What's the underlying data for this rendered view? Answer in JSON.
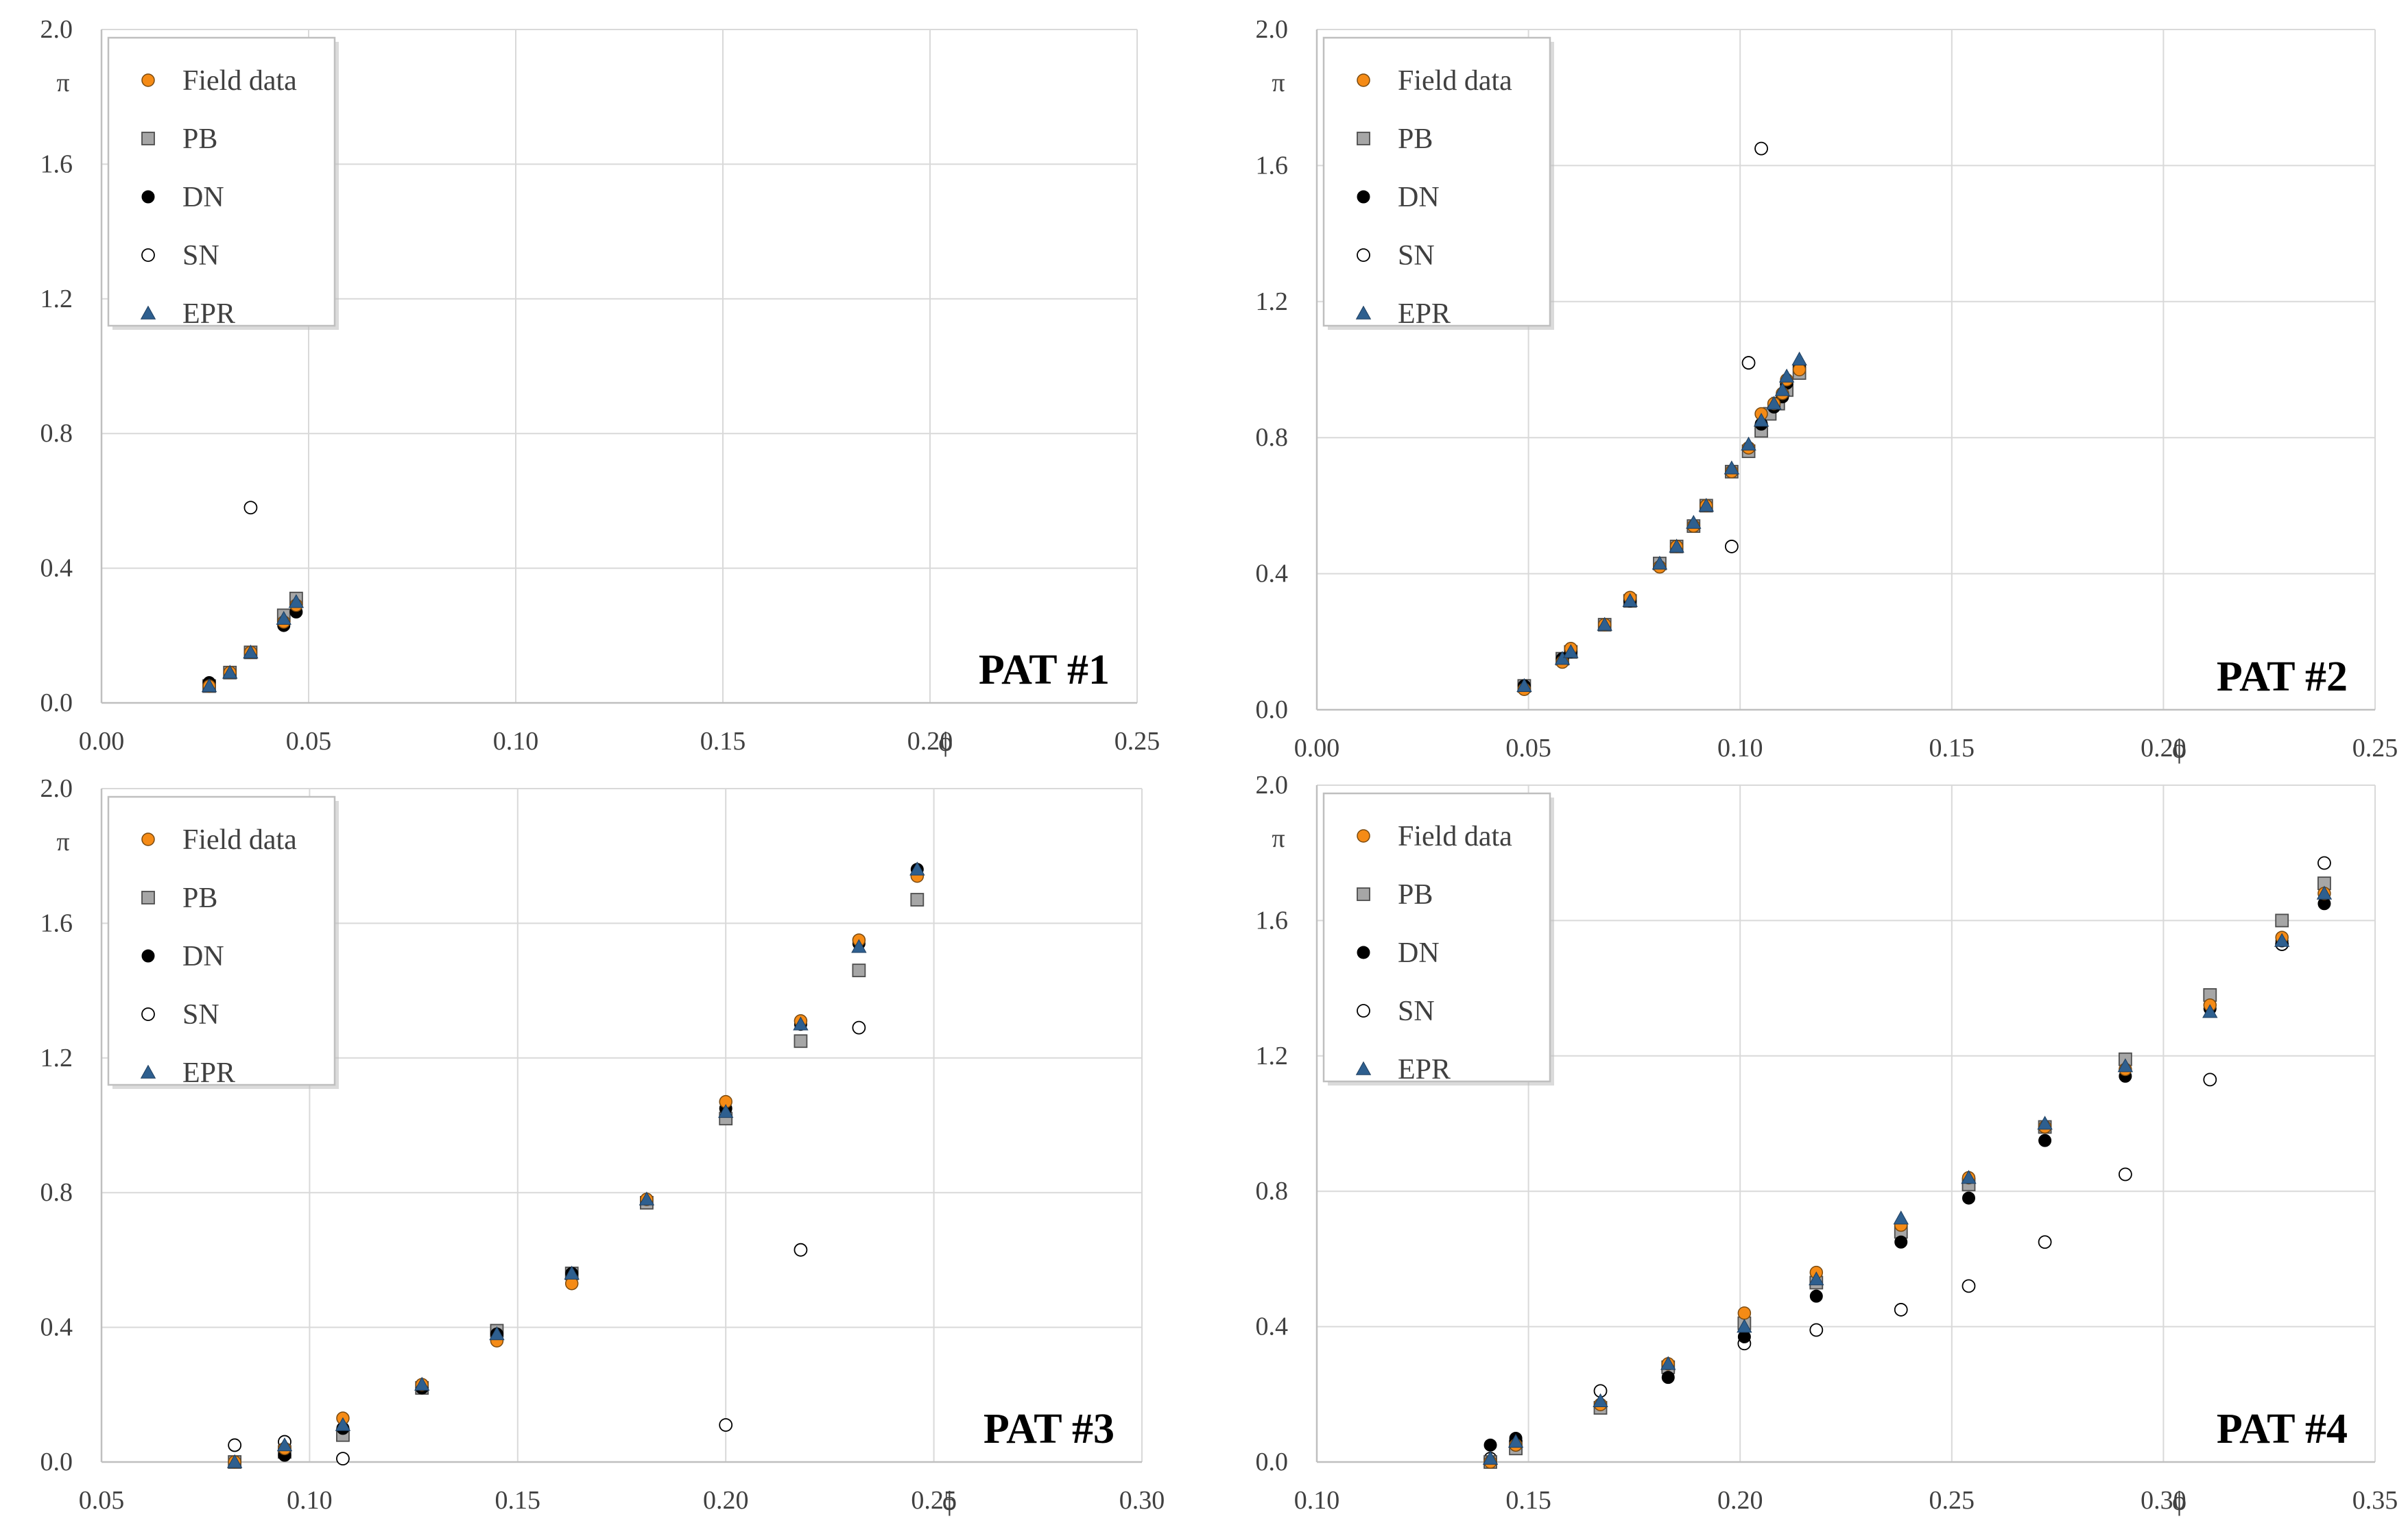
{
  "colors": {
    "field": "#f58b16",
    "pb": "#a6a6a6",
    "dn": "#000000",
    "sn": "#ffffff",
    "epr": "#2e5f8f",
    "grid": "#d9d9d9",
    "axis": "#bfbfbf",
    "text": "#404040"
  },
  "legend_labels": [
    "Field data",
    "PB",
    "DN",
    "SN",
    "EPR"
  ],
  "chart_data": [
    {
      "type": "scatter",
      "title": "PAT #1",
      "xlabel": "ϕ",
      "ylabel": "π",
      "xlim": [
        0.0,
        0.25
      ],
      "ylim": [
        0.0,
        2.0
      ],
      "xticks": [
        0.0,
        0.05,
        0.1,
        0.15,
        0.2,
        0.25
      ],
      "xtick_labels": [
        "0.00",
        "0.05",
        "0.10",
        "0.15",
        "0.20",
        "0.25"
      ],
      "yticks": [
        0.0,
        0.4,
        0.8,
        1.2,
        1.6,
        2.0
      ],
      "ytick_labels": [
        "0.0",
        "0.4",
        "0.8",
        "1.2",
        "1.6",
        "2.0"
      ],
      "grid": true,
      "legend_position": "top-left",
      "series": [
        {
          "name": "Field data",
          "x": [
            0.026,
            0.031,
            0.036,
            0.044,
            0.047
          ],
          "y": [
            0.05,
            0.09,
            0.15,
            0.24,
            0.29
          ]
        },
        {
          "name": "PB",
          "x": [
            0.026,
            0.031,
            0.036,
            0.044,
            0.047
          ],
          "y": [
            0.05,
            0.09,
            0.15,
            0.26,
            0.31
          ]
        },
        {
          "name": "DN",
          "x": [
            0.026,
            0.031,
            0.036,
            0.044,
            0.047
          ],
          "y": [
            0.06,
            0.09,
            0.15,
            0.23,
            0.27
          ]
        },
        {
          "name": "SN",
          "x": [
            0.036
          ],
          "y": [
            0.58
          ]
        },
        {
          "name": "EPR",
          "x": [
            0.026,
            0.031,
            0.036,
            0.044,
            0.047
          ],
          "y": [
            0.05,
            0.09,
            0.15,
            0.25,
            0.3
          ]
        }
      ]
    },
    {
      "type": "scatter",
      "title": "PAT #2",
      "xlabel": "ϕ",
      "ylabel": "π",
      "xlim": [
        0.0,
        0.25
      ],
      "ylim": [
        0.0,
        2.0
      ],
      "xticks": [
        0.0,
        0.05,
        0.1,
        0.15,
        0.2,
        0.25
      ],
      "xtick_labels": [
        "0.00",
        "0.05",
        "0.10",
        "0.15",
        "0.20",
        "0.25"
      ],
      "yticks": [
        0.0,
        0.4,
        0.8,
        1.2,
        1.6,
        2.0
      ],
      "ytick_labels": [
        "0.0",
        "0.4",
        "0.8",
        "1.2",
        "1.6",
        "2.0"
      ],
      "grid": true,
      "legend_position": "top-left",
      "series": [
        {
          "name": "Field data",
          "x": [
            0.049,
            0.058,
            0.06,
            0.068,
            0.074,
            0.081,
            0.085,
            0.089,
            0.092,
            0.098,
            0.102,
            0.105,
            0.108,
            0.11,
            0.111,
            0.114
          ],
          "y": [
            0.06,
            0.14,
            0.18,
            0.25,
            0.33,
            0.42,
            0.48,
            0.54,
            0.6,
            0.7,
            0.77,
            0.87,
            0.9,
            0.93,
            0.97,
            1.0
          ]
        },
        {
          "name": "PB",
          "x": [
            0.049,
            0.058,
            0.06,
            0.068,
            0.074,
            0.081,
            0.085,
            0.089,
            0.092,
            0.098,
            0.102,
            0.105,
            0.107,
            0.109,
            0.111,
            0.114
          ],
          "y": [
            0.07,
            0.15,
            0.17,
            0.25,
            0.32,
            0.43,
            0.48,
            0.54,
            0.6,
            0.7,
            0.76,
            0.82,
            0.87,
            0.9,
            0.94,
            0.99
          ]
        },
        {
          "name": "DN",
          "x": [
            0.049,
            0.058,
            0.06,
            0.068,
            0.074,
            0.081,
            0.085,
            0.089,
            0.092,
            0.098,
            0.102,
            0.105,
            0.108,
            0.11,
            0.111,
            0.114
          ],
          "y": [
            0.07,
            0.15,
            0.17,
            0.25,
            0.32,
            0.42,
            0.48,
            0.54,
            0.6,
            0.7,
            0.77,
            0.84,
            0.89,
            0.92,
            0.96,
            1.01
          ]
        },
        {
          "name": "SN",
          "x": [
            0.098,
            0.102,
            0.105
          ],
          "y": [
            0.48,
            1.02,
            1.65
          ]
        },
        {
          "name": "EPR",
          "x": [
            0.049,
            0.058,
            0.06,
            0.068,
            0.074,
            0.081,
            0.085,
            0.089,
            0.092,
            0.098,
            0.102,
            0.105,
            0.108,
            0.11,
            0.111,
            0.114
          ],
          "y": [
            0.07,
            0.15,
            0.17,
            0.25,
            0.32,
            0.43,
            0.48,
            0.55,
            0.6,
            0.71,
            0.78,
            0.85,
            0.9,
            0.94,
            0.98,
            1.03
          ]
        }
      ]
    },
    {
      "type": "scatter",
      "title": "PAT #3",
      "xlabel": "ϕ",
      "ylabel": "π",
      "xlim": [
        0.05,
        0.3
      ],
      "ylim": [
        0.0,
        2.0
      ],
      "xticks": [
        0.05,
        0.1,
        0.15,
        0.2,
        0.25,
        0.3
      ],
      "xtick_labels": [
        "0.05",
        "0.10",
        "0.15",
        "0.20",
        "0.25",
        "0.30"
      ],
      "yticks": [
        0.0,
        0.4,
        0.8,
        1.2,
        1.6,
        2.0
      ],
      "ytick_labels": [
        "0.0",
        "0.4",
        "0.8",
        "1.2",
        "1.6",
        "2.0"
      ],
      "grid": true,
      "legend_position": "top-left",
      "series": [
        {
          "name": "Field data",
          "x": [
            0.082,
            0.094,
            0.108,
            0.127,
            0.145,
            0.163,
            0.181,
            0.2,
            0.218,
            0.232,
            0.246
          ],
          "y": [
            0.0,
            0.04,
            0.13,
            0.23,
            0.36,
            0.53,
            0.78,
            1.07,
            1.31,
            1.55,
            1.74
          ]
        },
        {
          "name": "PB",
          "x": [
            0.082,
            0.094,
            0.108,
            0.127,
            0.145,
            0.163,
            0.181,
            0.2,
            0.218,
            0.232,
            0.246
          ],
          "y": [
            0.0,
            0.03,
            0.08,
            0.22,
            0.39,
            0.56,
            0.77,
            1.02,
            1.25,
            1.46,
            1.67
          ]
        },
        {
          "name": "DN",
          "x": [
            0.082,
            0.094,
            0.108,
            0.127,
            0.145,
            0.163,
            0.181,
            0.2,
            0.218,
            0.232,
            0.246
          ],
          "y": [
            0.0,
            0.02,
            0.1,
            0.22,
            0.38,
            0.56,
            0.78,
            1.05,
            1.3,
            1.54,
            1.76
          ]
        },
        {
          "name": "SN",
          "x": [
            0.082,
            0.094,
            0.108,
            0.2,
            0.218,
            0.232
          ],
          "y": [
            0.05,
            0.06,
            0.01,
            0.11,
            0.63,
            1.29
          ]
        },
        {
          "name": "EPR",
          "x": [
            0.082,
            0.094,
            0.108,
            0.127,
            0.145,
            0.163,
            0.181,
            0.2,
            0.218,
            0.232,
            0.246
          ],
          "y": [
            0.0,
            0.05,
            0.11,
            0.23,
            0.38,
            0.56,
            0.78,
            1.04,
            1.3,
            1.53,
            1.76
          ]
        }
      ]
    },
    {
      "type": "scatter",
      "title": "PAT #4",
      "xlabel": "ϕ",
      "ylabel": "π",
      "xlim": [
        0.1,
        0.35
      ],
      "ylim": [
        0.0,
        2.0
      ],
      "xticks": [
        0.1,
        0.15,
        0.2,
        0.25,
        0.3,
        0.35
      ],
      "xtick_labels": [
        "0.10",
        "0.15",
        "0.20",
        "0.25",
        "0.30",
        "0.35"
      ],
      "yticks": [
        0.0,
        0.4,
        0.8,
        1.2,
        1.6,
        2.0
      ],
      "ytick_labels": [
        "0.0",
        "0.4",
        "0.8",
        "1.2",
        "1.6",
        "2.0"
      ],
      "grid": true,
      "legend_position": "top-left",
      "series": [
        {
          "name": "Field data",
          "x": [
            0.141,
            0.147,
            0.167,
            0.183,
            0.201,
            0.218,
            0.238,
            0.254,
            0.272,
            0.291,
            0.311,
            0.328,
            0.338
          ],
          "y": [
            0.0,
            0.05,
            0.17,
            0.29,
            0.44,
            0.56,
            0.7,
            0.84,
            0.99,
            1.16,
            1.35,
            1.55,
            1.68
          ]
        },
        {
          "name": "PB",
          "x": [
            0.141,
            0.147,
            0.167,
            0.183,
            0.201,
            0.218,
            0.238,
            0.254,
            0.272,
            0.291,
            0.311,
            0.328,
            0.338
          ],
          "y": [
            0.0,
            0.04,
            0.16,
            0.28,
            0.41,
            0.53,
            0.68,
            0.82,
            0.99,
            1.19,
            1.38,
            1.6,
            1.71
          ]
        },
        {
          "name": "DN",
          "x": [
            0.141,
            0.147,
            0.167,
            0.183,
            0.201,
            0.218,
            0.238,
            0.254,
            0.272,
            0.291,
            0.311,
            0.328,
            0.338
          ],
          "y": [
            0.05,
            0.07,
            0.17,
            0.25,
            0.37,
            0.49,
            0.65,
            0.78,
            0.95,
            1.14,
            1.34,
            1.54,
            1.65
          ]
        },
        {
          "name": "SN",
          "x": [
            0.141,
            0.147,
            0.167,
            0.183,
            0.201,
            0.218,
            0.238,
            0.254,
            0.272,
            0.291,
            0.311,
            0.328,
            0.338
          ],
          "y": [
            0.01,
            0.06,
            0.21,
            0.27,
            0.35,
            0.39,
            0.45,
            0.52,
            0.65,
            0.85,
            1.13,
            1.53,
            1.77
          ]
        },
        {
          "name": "EPR",
          "x": [
            0.141,
            0.147,
            0.167,
            0.183,
            0.201,
            0.218,
            0.238,
            0.254,
            0.272,
            0.291,
            0.311,
            0.328,
            0.338
          ],
          "y": [
            0.01,
            0.06,
            0.18,
            0.29,
            0.4,
            0.54,
            0.72,
            0.84,
            1.0,
            1.17,
            1.33,
            1.54,
            1.68
          ]
        }
      ]
    }
  ]
}
